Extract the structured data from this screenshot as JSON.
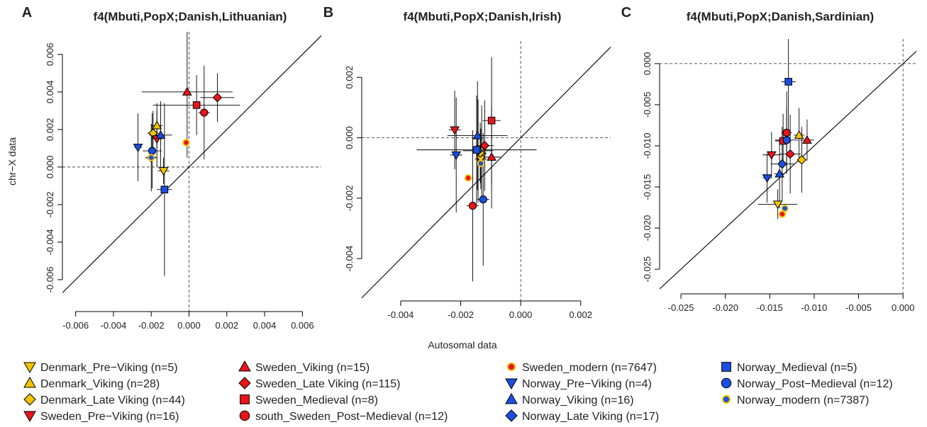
{
  "x_label": "Autosomal data",
  "y_label": "chr−X data",
  "legend": [
    {
      "label": "Denmark_Pre−Viking (n=5)",
      "marker": "triangle-down",
      "fill": "#f5c400",
      "edge": "#000000"
    },
    {
      "label": "Denmark_Viking (n=28)",
      "marker": "triangle-up",
      "fill": "#f5c400",
      "edge": "#000000"
    },
    {
      "label": "Denmark_Late  Viking (n=44)",
      "marker": "diamond",
      "fill": "#f5c400",
      "edge": "#000000"
    },
    {
      "label": "Sweden_Pre−Viking (n=16)",
      "marker": "triangle-down",
      "fill": "#e8141a",
      "edge": "#000000"
    },
    {
      "label": "Sweden_Viking (n=15)",
      "marker": "triangle-up",
      "fill": "#e8141a",
      "edge": "#000000"
    },
    {
      "label": "Sweden_Late  Viking (n=115)",
      "marker": "diamond",
      "fill": "#e8141a",
      "edge": "#000000"
    },
    {
      "label": "Sweden_Medieval (n=8)",
      "marker": "square",
      "fill": "#e8141a",
      "edge": "#000000"
    },
    {
      "label": "south_Sweden_Post−Medieval (n=12)",
      "marker": "circle",
      "fill": "#e8141a",
      "edge": "#000000"
    },
    {
      "label": "Sweden_modern (n=7647)",
      "marker": "circle",
      "fill": "#e8141a",
      "edge": "#f5c400"
    },
    {
      "label": "Norway_Pre−Viking (n=4)",
      "marker": "triangle-down",
      "fill": "#1a4fe0",
      "edge": "#000000"
    },
    {
      "label": "Norway_Viking (n=16)",
      "marker": "triangle-up",
      "fill": "#1a4fe0",
      "edge": "#000000"
    },
    {
      "label": "Norway_Late  Viking (n=17)",
      "marker": "diamond",
      "fill": "#1a4fe0",
      "edge": "#000000"
    },
    {
      "label": "Norway_Medieval (n=5)",
      "marker": "square",
      "fill": "#1a4fe0",
      "edge": "#000000"
    },
    {
      "label": "Norway_Post−Medieval (n=12)",
      "marker": "circle",
      "fill": "#1a4fe0",
      "edge": "#000000"
    },
    {
      "label": "Norway_modern (n=7387)",
      "marker": "circle",
      "fill": "#1a4fe0",
      "edge": "#f5c400"
    }
  ],
  "chart_data": [
    {
      "type": "scatter",
      "panel": "A",
      "title": "f4(Mbuti,PopX;Danish,Lithuanian)",
      "xlim": [
        -0.0067,
        0.007
      ],
      "ylim": [
        -0.0077,
        0.0072
      ],
      "xticks": [
        -0.006,
        -0.004,
        -0.002,
        {
          "value": 0,
          "label": "0.000"
        },
        0.002,
        0.004,
        0.006
      ],
      "yticks": [
        -0.006,
        -0.004,
        -0.002,
        {
          "value": 0,
          "label": "0.000"
        },
        0.002,
        0.004,
        0.006
      ],
      "zero_lines": true,
      "identity_line": true,
      "points": [
        {
          "x": -0.00135,
          "y": -0.0002,
          "xerr": 0.0003,
          "yerr": 0.0007
        },
        {
          "x": -0.0017,
          "y": 0.0022,
          "xerr": 0.0003,
          "yerr": 0.0012
        },
        {
          "x": -0.0019,
          "y": 0.0018,
          "xerr": 0.0003,
          "yerr": 0.0012
        },
        {
          "x": -0.0017,
          "y": 0.0015,
          "xerr": 0.0003,
          "yerr": 0.0015
        },
        {
          "x": -0.0001,
          "y": 0.004,
          "xerr": 0.0024,
          "yerr": 0.0035
        },
        {
          "x": 0.0015,
          "y": 0.0037,
          "xerr": 0.0009,
          "yerr": 0.0013
        },
        {
          "x": 0.0004,
          "y": 0.0033,
          "xerr": 0.0023,
          "yerr": 0.0016
        },
        {
          "x": 0.0008,
          "y": 0.0029,
          "xerr": 0.0003,
          "yerr": 0.0025
        },
        {
          "x": -0.00015,
          "y": 0.0013,
          "xerr": 0,
          "yerr": 0
        },
        {
          "x": -0.0027,
          "y": 0.00105,
          "xerr": 0.0002,
          "yerr": 0.0018
        },
        {
          "x": -0.0015,
          "y": 0.0017,
          "xerr": 0.0006,
          "yerr": 0.0018
        },
        {
          "x": -0.002,
          "y": 0.0005,
          "xerr": 0.0003,
          "yerr": 0.0018
        },
        {
          "x": -0.0013,
          "y": -0.0012,
          "xerr": 0.0004,
          "yerr": 0.0046
        },
        {
          "x": -0.00195,
          "y": 0.00086,
          "xerr": 0.0005,
          "yerr": 0.002
        },
        {
          "x": -0.002,
          "y": 0.0005,
          "xerr": 0,
          "yerr": 0
        }
      ]
    },
    {
      "type": "scatter",
      "panel": "B",
      "title": "f4(Mbuti,PopX;Danish,Irish)",
      "xlim": [
        -0.0053,
        0.003
      ],
      "ylim": [
        -0.0054,
        0.0032
      ],
      "xticks": [
        -0.004,
        -0.002,
        {
          "value": 0,
          "label": "0.000"
        },
        0.002
      ],
      "yticks": [
        -0.004,
        -0.002,
        {
          "value": 0,
          "label": "0.000"
        },
        0.002
      ],
      "zero_lines": true,
      "identity_line": true,
      "points": [
        {
          "x": -0.00133,
          "y": -0.0007,
          "xerr": 0.0002,
          "yerr": 0.001
        },
        {
          "x": -0.0013,
          "y": -0.00043,
          "xerr": 0.0002,
          "yerr": 0.0015
        },
        {
          "x": -0.00135,
          "y": -0.0005,
          "xerr": 0.0002,
          "yerr": 0.001
        },
        {
          "x": -0.0022,
          "y": 0.00026,
          "xerr": 0.0002,
          "yerr": 0.0013
        },
        {
          "x": -0.00097,
          "y": -0.00064,
          "xerr": 0.0003,
          "yerr": 0.0017
        },
        {
          "x": -0.0012,
          "y": -0.00026,
          "xerr": 0.0003,
          "yerr": 0.0015
        },
        {
          "x": -0.00097,
          "y": 0.00057,
          "xerr": 0.0003,
          "yerr": 0.0021
        },
        {
          "x": -0.0016,
          "y": -0.00225,
          "xerr": 0.0002,
          "yerr": 0.0025
        },
        {
          "x": -0.00175,
          "y": -0.00133,
          "xerr": 0,
          "yerr": 0
        },
        {
          "x": -0.00215,
          "y": -0.00057,
          "xerr": 0.0002,
          "yerr": 0.0019
        },
        {
          "x": -0.00144,
          "y": 7e-05,
          "xerr": 0.001,
          "yerr": 0.0018
        },
        {
          "x": -0.00142,
          "y": -0.00043,
          "xerr": 0.0005,
          "yerr": 0.0017
        },
        {
          "x": -0.00147,
          "y": -0.0004,
          "xerr": 0.002,
          "yerr": 0.0018
        },
        {
          "x": -0.00125,
          "y": -0.00204,
          "xerr": 0.0002,
          "yerr": 0.0022
        },
        {
          "x": -0.00133,
          "y": -0.00085,
          "xerr": 0,
          "yerr": 0
        }
      ]
    },
    {
      "type": "scatter",
      "panel": "C",
      "title": "f4(Mbuti,PopX;Danish,Sardinian)",
      "xlim": [
        -0.0274,
        0.0015
      ],
      "ylim": [
        -0.028,
        0.003
      ],
      "xticks": [
        -0.025,
        {
          "value": -0.02,
          "label": "-0.020"
        },
        -0.015,
        {
          "value": -0.01,
          "label": "-0.010"
        },
        -0.005,
        {
          "value": 0,
          "label": "0.000"
        }
      ],
      "yticks": [
        -0.025,
        {
          "value": -0.02,
          "label": "-0.020"
        },
        -0.015,
        {
          "value": -0.01,
          "label": "-0.010"
        },
        -0.005,
        {
          "value": 0,
          "label": "0.000"
        }
      ],
      "zero_lines": true,
      "identity_line": true,
      "points": [
        {
          "x": -0.0141,
          "y": -0.0171,
          "xerr": 0.0022,
          "yerr": 0.0018
        },
        {
          "x": -0.0117,
          "y": -0.0087,
          "xerr": 0.0006,
          "yerr": 0.0033
        },
        {
          "x": -0.0114,
          "y": -0.0117,
          "xerr": 0.0005,
          "yerr": 0.004
        },
        {
          "x": -0.0148,
          "y": -0.0111,
          "xerr": 0.001,
          "yerr": 0.0028
        },
        {
          "x": -0.0108,
          "y": -0.0093,
          "xerr": 0.0008,
          "yerr": 0.0025
        },
        {
          "x": -0.0127,
          "y": -0.011,
          "xerr": 0.0012,
          "yerr": 0.0048
        },
        {
          "x": -0.0135,
          "y": -0.0094,
          "xerr": 0.0009,
          "yerr": 0.0033
        },
        {
          "x": -0.0131,
          "y": -0.0084,
          "xerr": 0.0006,
          "yerr": 0.005
        },
        {
          "x": -0.0136,
          "y": -0.0183,
          "xerr": 0,
          "yerr": 0
        },
        {
          "x": -0.0153,
          "y": -0.0139,
          "xerr": 0.0005,
          "yerr": 0.003
        },
        {
          "x": -0.0139,
          "y": -0.0134,
          "xerr": 0.0006,
          "yerr": 0.0042
        },
        {
          "x": -0.0136,
          "y": -0.0122,
          "xerr": 0.0013,
          "yerr": 0.0045
        },
        {
          "x": -0.0129,
          "y": -0.0022,
          "xerr": 0.0008,
          "yerr": 0.0075
        },
        {
          "x": -0.0131,
          "y": -0.0093,
          "xerr": 0.0013,
          "yerr": 0.004
        },
        {
          "x": -0.0133,
          "y": -0.0176,
          "xerr": 0,
          "yerr": 0
        }
      ]
    }
  ]
}
